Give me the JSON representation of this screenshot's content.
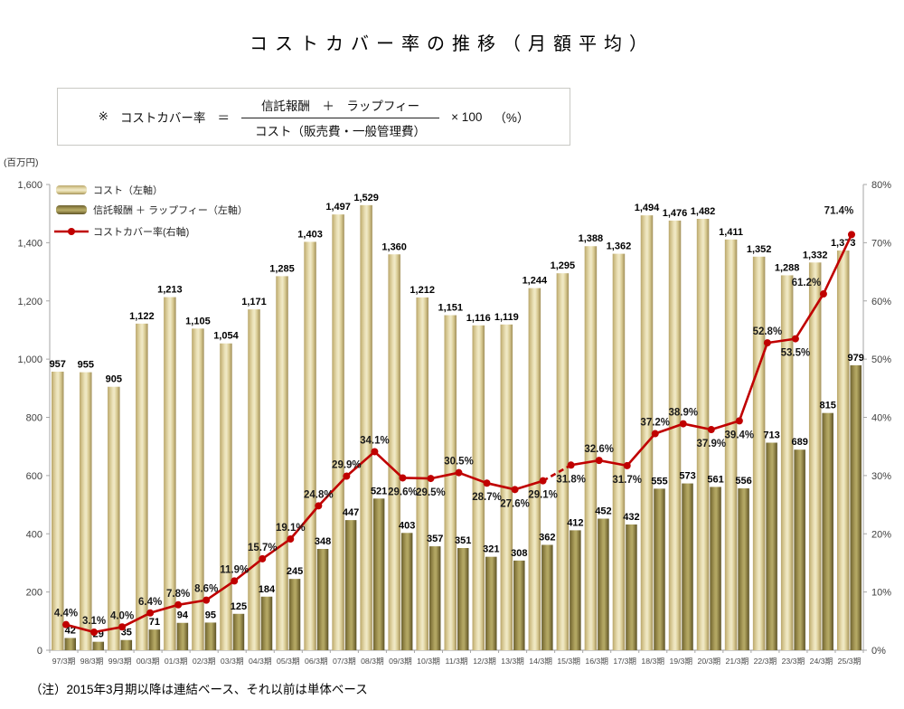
{
  "title": "コストカバー率の推移（月額平均）",
  "formula": {
    "note_mark": "※",
    "lhs": "コストカバー率",
    "equals": "＝",
    "numerator": "信託報酬　＋　ラップフィー",
    "denominator": "コスト（販売費・一般管理費）",
    "multiplier": "× 100",
    "unit": "（%）"
  },
  "note": "（注）2015年3月期以降は連結ベース、それ以前は単体ベース",
  "colors": {
    "cost_bar_base": "#ddd1a0",
    "fee_bar_base": "#a3964f",
    "rate_line": "#c00000",
    "axis": "#a6a6a6",
    "label": "#000000"
  },
  "chart_data": {
    "type": "bar",
    "subtype": "combo-bar-line",
    "grid": false,
    "legend_position": "top-left-inside",
    "data_labels": true,
    "categories": [
      "97/3期",
      "98/3期",
      "99/3期",
      "00/3期",
      "01/3期",
      "02/3期",
      "03/3期",
      "04/3期",
      "05/3期",
      "06/3期",
      "07/3期",
      "08/3期",
      "09/3期",
      "10/3期",
      "11/3期",
      "12/3期",
      "13/3期",
      "14/3期",
      "15/3期",
      "16/3期",
      "17/3期",
      "18/3期",
      "19/3期",
      "20/3期",
      "21/3期",
      "22/3期",
      "23/3期",
      "24/3期",
      "25/3期"
    ],
    "series": [
      {
        "name": "コスト（左軸）",
        "type": "bar",
        "axis": "left",
        "color": "#ddd1a0",
        "values": [
          957,
          955,
          905,
          1122,
          1213,
          1105,
          1054,
          1171,
          1285,
          1403,
          1497,
          1529,
          1360,
          1212,
          1151,
          1116,
          1119,
          1244,
          1295,
          1388,
          1362,
          1494,
          1476,
          1482,
          1411,
          1352,
          1288,
          1332,
          1373
        ]
      },
      {
        "name": "信託報酬 ＋ ラップフィー（左軸）",
        "type": "bar",
        "axis": "left",
        "color": "#a3964f",
        "values": [
          42,
          29,
          35,
          71,
          94,
          95,
          125,
          184,
          245,
          348,
          447,
          521,
          403,
          357,
          351,
          321,
          308,
          362,
          412,
          452,
          432,
          555,
          573,
          561,
          556,
          713,
          689,
          815,
          979
        ]
      },
      {
        "name": "コストカバー率(右軸)",
        "type": "line",
        "axis": "right",
        "color": "#c00000",
        "values": [
          4.4,
          3.1,
          4.0,
          6.4,
          7.8,
          8.6,
          11.9,
          15.7,
          19.1,
          24.8,
          29.9,
          34.1,
          29.6,
          29.5,
          30.5,
          28.7,
          27.6,
          29.1,
          31.8,
          32.6,
          31.7,
          37.2,
          38.9,
          37.9,
          39.4,
          52.8,
          53.5,
          61.2,
          71.4
        ],
        "dashed_between": [
          "14/3期",
          "15/3期"
        ]
      }
    ],
    "left_axis": {
      "unit": "(百万円)",
      "min": 0,
      "max": 1600,
      "step": 200,
      "tick_labels": [
        "0",
        "200",
        "400",
        "600",
        "800",
        "1,000",
        "1,200",
        "1,400",
        "1,600"
      ]
    },
    "right_axis": {
      "min": 0,
      "max": 80,
      "step": 10,
      "tick_labels": [
        "0%",
        "10%",
        "20%",
        "30%",
        "40%",
        "50%",
        "60%",
        "70%",
        "80%"
      ]
    }
  }
}
